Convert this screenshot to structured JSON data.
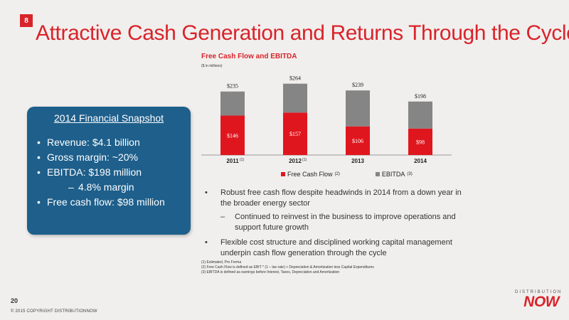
{
  "slide": {
    "badge": "8",
    "title": "Attractive Cash Generation and Returns Through the Cycle",
    "page_number": "20",
    "copyright": "© 2015 COPYRIGHT DISTRIBUTIONNOW",
    "logo_top": "DISTRIBUTION",
    "logo_main": "NOW"
  },
  "snapshot": {
    "title": "2014 Financial Snapshot",
    "items": [
      {
        "text": "Revenue: $4.1 billion",
        "bullet": "•"
      },
      {
        "text": "Gross margin: ~20%",
        "bullet": "•"
      },
      {
        "text": "EBITDA: $198 million",
        "bullet": "•"
      },
      {
        "text": "4.8% margin",
        "bullet": "–"
      },
      {
        "text": "Free cash flow: $98 million",
        "bullet": "•"
      }
    ]
  },
  "bullets": {
    "b1": "Robust free cash flow despite headwinds in 2014 from a down year in the broader energy sector",
    "b1_sub": "Continued to reinvest in the business to improve operations and support future growth",
    "b2": "Flexible cost structure and disciplined working capital management underpin cash flow generation through the cycle"
  },
  "footnotes": [
    "(1) Estimated, Pro Forma",
    "(2) Free Cash Flow is defined as EBIT * (1 – tax rate) + Depreciation & Amortization less Capital Expenditures",
    "(3) EBITDA is defined as earnings before Interest, Taxes, Depreciation and Amortization"
  ],
  "chart_data": {
    "type": "bar",
    "stacked": true,
    "title": "Free Cash Flow and EBITDA",
    "unit_note": "($ in millions)",
    "categories": [
      "2011",
      "2012",
      "2013",
      "2014"
    ],
    "category_footnotes": [
      "(1)",
      "(1)",
      "",
      ""
    ],
    "series": [
      {
        "name": "Free Cash Flow",
        "footnote": "(2)",
        "values": [
          146,
          157,
          106,
          98
        ],
        "labels": [
          "$146",
          "$157",
          "$106",
          "$98"
        ],
        "color": "#e0161e"
      },
      {
        "name": "EBITDA",
        "footnote": "(3)",
        "values": [
          89,
          107,
          133,
          100
        ],
        "color": "#858585"
      }
    ],
    "totals": [
      235,
      264,
      239,
      198
    ],
    "total_labels": [
      "$235",
      "$264",
      "$239",
      "$198"
    ],
    "ylim": [
      0,
      300
    ],
    "grid": false
  }
}
